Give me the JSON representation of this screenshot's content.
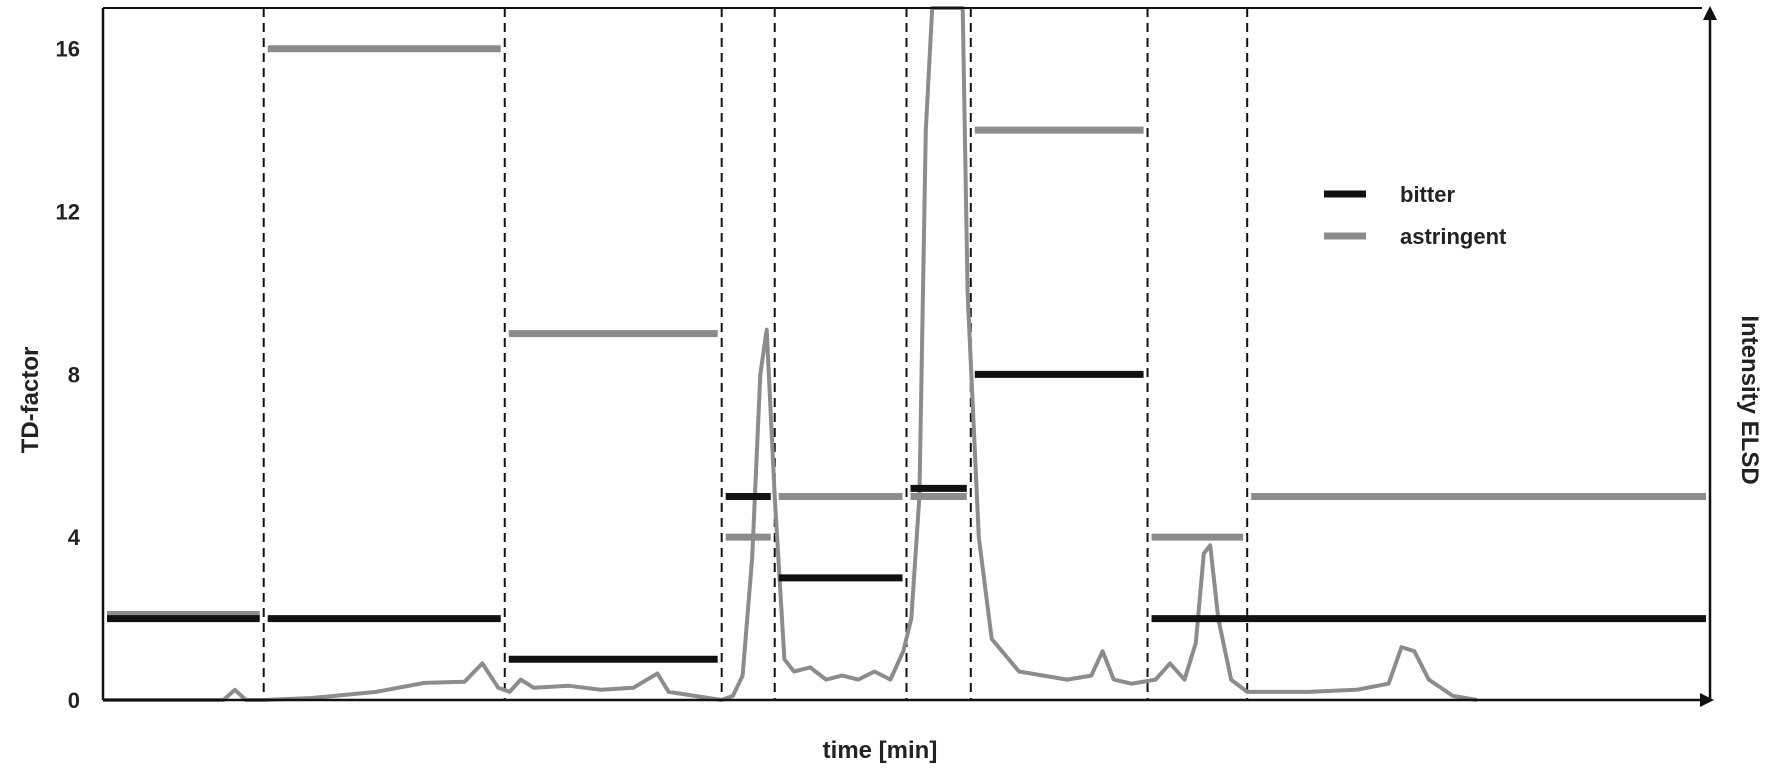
{
  "chart_data": {
    "type": "line",
    "title": "",
    "xlabel": "time [min]",
    "ylabel": "TD-factor",
    "y2label": "Intensity ELSD",
    "ylim": [
      0,
      17
    ],
    "yticks": [
      0,
      4,
      8,
      12,
      16
    ],
    "xlim": [
      0,
      1
    ],
    "grid": false,
    "legend": {
      "placement": "top-right",
      "entries": [
        {
          "label": "bitter",
          "color": "#111111"
        },
        {
          "label": "astringent",
          "color": "#8c8c8c"
        }
      ]
    },
    "fraction_boundaries": [
      0.1,
      0.25,
      0.385,
      0.418,
      0.5,
      0.54,
      0.65,
      0.712
    ],
    "series": [
      {
        "name": "bitter",
        "color": "#111111",
        "segments": [
          {
            "x0": 0.0,
            "x1": 0.1,
            "y": 2
          },
          {
            "x0": 0.1,
            "x1": 0.25,
            "y": 2
          },
          {
            "x0": 0.25,
            "x1": 0.385,
            "y": 1
          },
          {
            "x0": 0.385,
            "x1": 0.418,
            "y": 5
          },
          {
            "x0": 0.418,
            "x1": 0.5,
            "y": 3
          },
          {
            "x0": 0.5,
            "x1": 0.54,
            "y": 5.2
          },
          {
            "x0": 0.54,
            "x1": 0.65,
            "y": 8
          },
          {
            "x0": 0.65,
            "x1": 1.0,
            "y": 2
          }
        ]
      },
      {
        "name": "astringent",
        "color": "#8c8c8c",
        "segments": [
          {
            "x0": 0.0,
            "x1": 0.1,
            "y": 2.1
          },
          {
            "x0": 0.1,
            "x1": 0.25,
            "y": 16
          },
          {
            "x0": 0.25,
            "x1": 0.385,
            "y": 9
          },
          {
            "x0": 0.385,
            "x1": 0.418,
            "y": 4
          },
          {
            "x0": 0.418,
            "x1": 0.5,
            "y": 5
          },
          {
            "x0": 0.5,
            "x1": 0.54,
            "y": 5
          },
          {
            "x0": 0.54,
            "x1": 0.65,
            "y": 14
          },
          {
            "x0": 0.65,
            "x1": 0.712,
            "y": 4
          },
          {
            "x0": 0.712,
            "x1": 1.0,
            "y": 5
          }
        ]
      }
    ],
    "elsd_trace": {
      "color": "#8c8c8c",
      "points": [
        [
          0.0,
          0.0
        ],
        [
          0.075,
          0.0
        ],
        [
          0.082,
          0.25
        ],
        [
          0.089,
          0.0
        ],
        [
          0.1,
          0.0
        ],
        [
          0.13,
          0.05
        ],
        [
          0.17,
          0.2
        ],
        [
          0.2,
          0.42
        ],
        [
          0.225,
          0.45
        ],
        [
          0.236,
          0.9
        ],
        [
          0.246,
          0.3
        ],
        [
          0.253,
          0.2
        ],
        [
          0.26,
          0.5
        ],
        [
          0.268,
          0.3
        ],
        [
          0.29,
          0.35
        ],
        [
          0.31,
          0.25
        ],
        [
          0.33,
          0.3
        ],
        [
          0.345,
          0.65
        ],
        [
          0.352,
          0.2
        ],
        [
          0.385,
          0.0
        ],
        [
          0.392,
          0.1
        ],
        [
          0.398,
          0.6
        ],
        [
          0.404,
          3.5
        ],
        [
          0.409,
          8.0
        ],
        [
          0.413,
          9.1
        ],
        [
          0.418,
          5.0
        ],
        [
          0.424,
          1.0
        ],
        [
          0.43,
          0.7
        ],
        [
          0.44,
          0.8
        ],
        [
          0.45,
          0.5
        ],
        [
          0.46,
          0.6
        ],
        [
          0.47,
          0.5
        ],
        [
          0.48,
          0.7
        ],
        [
          0.49,
          0.5
        ],
        [
          0.498,
          1.2
        ],
        [
          0.503,
          2.0
        ],
        [
          0.508,
          5.0
        ],
        [
          0.512,
          14.0
        ],
        [
          0.516,
          17.0
        ],
        [
          0.535,
          17.0
        ],
        [
          0.538,
          10.0
        ],
        [
          0.545,
          4.0
        ],
        [
          0.553,
          1.5
        ],
        [
          0.57,
          0.7
        ],
        [
          0.6,
          0.5
        ],
        [
          0.615,
          0.6
        ],
        [
          0.622,
          1.2
        ],
        [
          0.629,
          0.5
        ],
        [
          0.64,
          0.4
        ],
        [
          0.655,
          0.5
        ],
        [
          0.664,
          0.9
        ],
        [
          0.673,
          0.5
        ],
        [
          0.68,
          1.4
        ],
        [
          0.685,
          3.6
        ],
        [
          0.689,
          3.8
        ],
        [
          0.694,
          2.0
        ],
        [
          0.702,
          0.5
        ],
        [
          0.712,
          0.2
        ],
        [
          0.75,
          0.2
        ],
        [
          0.78,
          0.25
        ],
        [
          0.8,
          0.4
        ],
        [
          0.808,
          1.3
        ],
        [
          0.816,
          1.2
        ],
        [
          0.825,
          0.5
        ],
        [
          0.84,
          0.1
        ],
        [
          0.855,
          0.0
        ]
      ]
    }
  }
}
